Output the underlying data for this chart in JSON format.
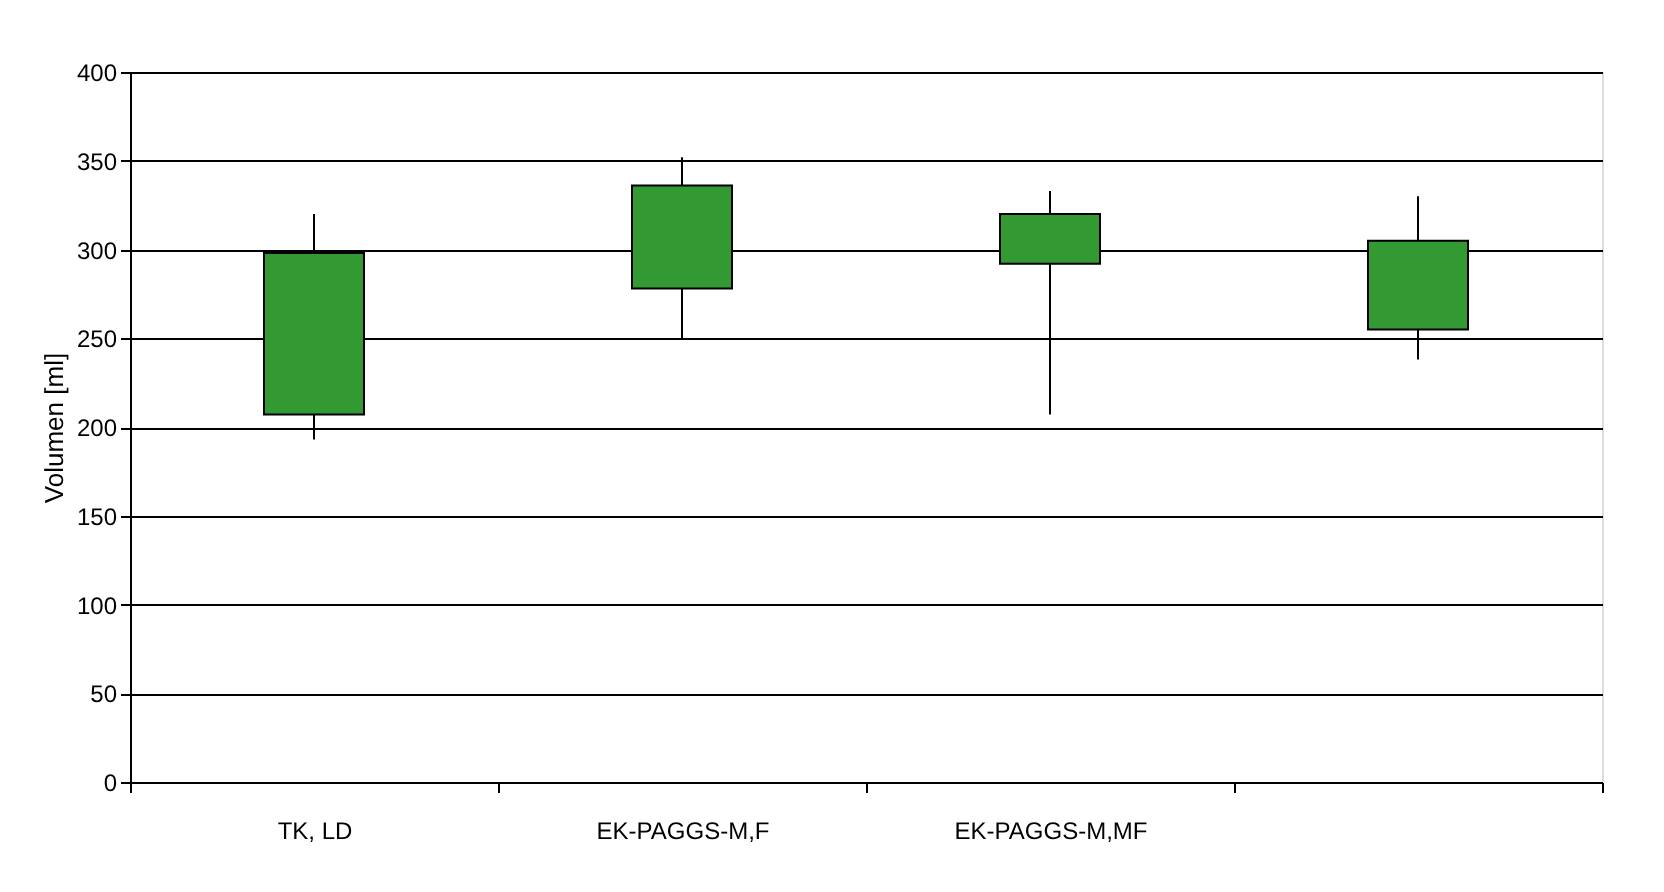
{
  "chart_data": {
    "type": "candlestick",
    "ylabel": "Volumen [ml]",
    "categories": [
      "TK, LD",
      "EK-PAGGS-M,F",
      "EK-PAGGS-M,MF",
      null
    ],
    "ohlc": [
      [
        207,
        320,
        193,
        298
      ],
      [
        278,
        352,
        250,
        336
      ],
      [
        292,
        333,
        207,
        320
      ],
      [
        255,
        330,
        238,
        305
      ]
    ],
    "color": "#339933",
    "ylim": [
      0,
      400
    ],
    "yticks": [
      0,
      50,
      100,
      150,
      200,
      250,
      300,
      350,
      400
    ],
    "grid": "y"
  }
}
